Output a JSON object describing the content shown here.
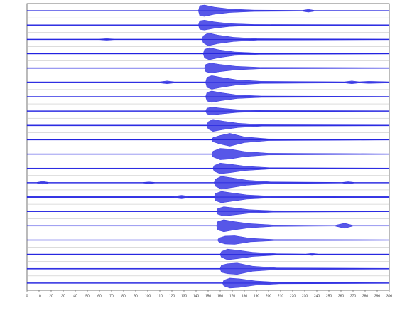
{
  "chart_data": {
    "type": "waveform",
    "color": "#1f1fe0",
    "xlim": [
      0,
      300
    ],
    "xticks": [
      0,
      10,
      20,
      30,
      40,
      50,
      60,
      70,
      80,
      90,
      100,
      110,
      120,
      130,
      140,
      150,
      160,
      170,
      180,
      190,
      200,
      210,
      220,
      230,
      240,
      250,
      260,
      270,
      280,
      290,
      300
    ],
    "series": [
      {
        "x": [
          0,
          142,
          143,
          147,
          155,
          168,
          188,
          228,
          233,
          238,
          300
        ],
        "values": [
          0.05,
          0.05,
          0.7,
          0.8,
          0.5,
          0.25,
          0.1,
          0.06,
          0.2,
          0.06,
          0.05
        ]
      },
      {
        "x": [
          0,
          142,
          143,
          147,
          155,
          168,
          188,
          300
        ],
        "values": [
          0.05,
          0.05,
          0.6,
          0.7,
          0.45,
          0.2,
          0.08,
          0.05
        ]
      },
      {
        "x": [
          0,
          60,
          66,
          72,
          145,
          146,
          150,
          158,
          171,
          191,
          300
        ],
        "values": [
          0.05,
          0.05,
          0.12,
          0.05,
          0.05,
          0.5,
          0.9,
          0.6,
          0.3,
          0.1,
          0.05
        ]
      },
      {
        "x": [
          0,
          146,
          147,
          151,
          159,
          172,
          192,
          300
        ],
        "values": [
          0.05,
          0.05,
          0.6,
          0.85,
          0.55,
          0.25,
          0.1,
          0.05
        ]
      },
      {
        "x": [
          0,
          147,
          148,
          152,
          160,
          173,
          193,
          300
        ],
        "values": [
          0.06,
          0.06,
          0.5,
          0.7,
          0.5,
          0.25,
          0.1,
          0.06
        ]
      },
      {
        "x": [
          0,
          110,
          116,
          122,
          148,
          149,
          153,
          161,
          174,
          194,
          263,
          269,
          275,
          283,
          300
        ],
        "values": [
          0.08,
          0.08,
          0.2,
          0.08,
          0.08,
          0.7,
          0.95,
          0.7,
          0.35,
          0.15,
          0.08,
          0.2,
          0.08,
          0.15,
          0.08
        ]
      },
      {
        "x": [
          0,
          148,
          149,
          153,
          161,
          174,
          194,
          300
        ],
        "values": [
          0.05,
          0.05,
          0.6,
          0.8,
          0.55,
          0.25,
          0.1,
          0.05
        ]
      },
      {
        "x": [
          0,
          148,
          149,
          153,
          161,
          174,
          194,
          300
        ],
        "values": [
          0.05,
          0.05,
          0.4,
          0.55,
          0.4,
          0.2,
          0.08,
          0.05
        ]
      },
      {
        "x": [
          0,
          149,
          150,
          154,
          162,
          175,
          195,
          300
        ],
        "values": [
          0.06,
          0.06,
          0.5,
          0.85,
          0.6,
          0.3,
          0.1,
          0.06
        ]
      },
      {
        "x": [
          0,
          153,
          154,
          160,
          168,
          180,
          200,
          300
        ],
        "values": [
          0.05,
          0.05,
          0.3,
          0.6,
          0.9,
          0.4,
          0.12,
          0.05
        ]
      },
      {
        "x": [
          0,
          153,
          154,
          160,
          168,
          180,
          200,
          300
        ],
        "values": [
          0.05,
          0.05,
          0.4,
          0.8,
          0.7,
          0.35,
          0.12,
          0.05
        ]
      },
      {
        "x": [
          0,
          154,
          155,
          160,
          168,
          181,
          201,
          300
        ],
        "values": [
          0.05,
          0.05,
          0.4,
          0.75,
          0.6,
          0.3,
          0.1,
          0.05
        ]
      },
      {
        "x": [
          0,
          8,
          13,
          18,
          96,
          101,
          106,
          155,
          156,
          161,
          169,
          182,
          202,
          261,
          266,
          271,
          300
        ],
        "values": [
          0.05,
          0.05,
          0.2,
          0.05,
          0.05,
          0.12,
          0.05,
          0.05,
          0.5,
          0.9,
          0.7,
          0.35,
          0.12,
          0.05,
          0.15,
          0.05,
          0.05
        ]
      },
      {
        "x": [
          0,
          120,
          128,
          135,
          155,
          156,
          161,
          169,
          182,
          202,
          300
        ],
        "values": [
          0.08,
          0.08,
          0.25,
          0.08,
          0.08,
          0.5,
          0.8,
          0.6,
          0.3,
          0.12,
          0.08
        ]
      },
      {
        "x": [
          0,
          157,
          158,
          163,
          171,
          184,
          204,
          300
        ],
        "values": [
          0.05,
          0.05,
          0.4,
          0.65,
          0.5,
          0.25,
          0.1,
          0.05
        ]
      },
      {
        "x": [
          0,
          157,
          158,
          163,
          171,
          184,
          204,
          255,
          263,
          270,
          300
        ],
        "values": [
          0.05,
          0.05,
          0.6,
          0.85,
          0.6,
          0.3,
          0.1,
          0.05,
          0.35,
          0.05,
          0.05
        ]
      },
      {
        "x": [
          0,
          158,
          159,
          164,
          172,
          185,
          205,
          300
        ],
        "values": [
          0.05,
          0.05,
          0.3,
          0.55,
          0.6,
          0.25,
          0.08,
          0.05
        ]
      },
      {
        "x": [
          0,
          160,
          161,
          166,
          174,
          187,
          207,
          231,
          236,
          241,
          300
        ],
        "values": [
          0.06,
          0.06,
          0.4,
          0.75,
          0.6,
          0.3,
          0.1,
          0.06,
          0.15,
          0.06,
          0.06
        ]
      },
      {
        "x": [
          0,
          160,
          161,
          166,
          174,
          187,
          207,
          300
        ],
        "values": [
          0.06,
          0.06,
          0.5,
          0.7,
          0.8,
          0.35,
          0.12,
          0.06
        ]
      },
      {
        "x": [
          0,
          162,
          163,
          168,
          176,
          189,
          209,
          300
        ],
        "values": [
          0.05,
          0.05,
          0.4,
          0.7,
          0.6,
          0.3,
          0.1,
          0.05
        ]
      }
    ]
  }
}
